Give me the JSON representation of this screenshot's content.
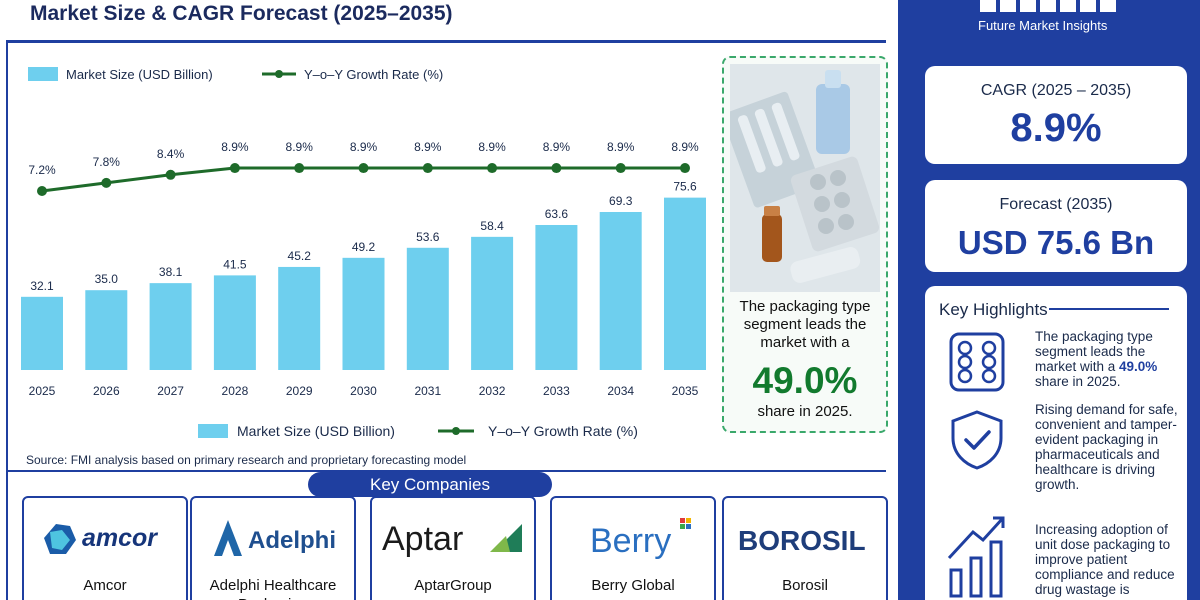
{
  "header": {
    "title": "Market Size & CAGR Forecast (2025–2035)"
  },
  "brand": {
    "name": "Future Market Insights",
    "logo_icon": "fmi-logo-icon"
  },
  "colors": {
    "primary": "#1f3fa0",
    "bar": "#6ecfee",
    "line": "#1e6b2a",
    "accent_green": "#127a2e"
  },
  "chart_data": {
    "type": "bar",
    "categories": [
      "2025",
      "2026",
      "2027",
      "2028",
      "2029",
      "2030",
      "2031",
      "2032",
      "2033",
      "2034",
      "2035"
    ],
    "series": [
      {
        "name": "Market Size (USD Billion)",
        "type": "bar",
        "values": [
          32.1,
          35.0,
          38.1,
          41.5,
          45.2,
          49.2,
          53.6,
          58.4,
          63.6,
          69.3,
          75.6
        ],
        "labels": [
          "32.1",
          "35.0",
          "38.1",
          "41.5",
          "45.2",
          "49.2",
          "53.6",
          "58.4",
          "63.6",
          "69.3",
          "75.6"
        ]
      },
      {
        "name": "Y-o-Y Growth Rate (%)",
        "type": "line",
        "values": [
          7.2,
          7.8,
          8.4,
          8.9,
          8.9,
          8.9,
          8.9,
          8.9,
          8.9,
          8.9,
          8.9
        ],
        "labels": [
          "7.2%",
          "7.8%",
          "8.4%",
          "8.9%",
          "8.9%",
          "8.9%",
          "8.9%",
          "8.9%",
          "8.9%",
          "8.9%",
          "8.9%"
        ]
      }
    ],
    "legend_top": {
      "bar_label": "Market Size (USD Billion)",
      "line_label": "Y–o–Y Growth Rate (%)"
    },
    "legend_bottom": {
      "bar_label": "Market Size (USD Billion)",
      "line_label": "Y–o–Y Growth Rate (%)"
    },
    "grid": false,
    "legend_position": "top-left and bottom-center"
  },
  "source": "Source: FMI analysis based on primary research and proprietary forecasting model",
  "highlight": {
    "text": "The packaging type segment leads the market with a",
    "value": "49.0%",
    "text_after": "share in 2025."
  },
  "key_companies": {
    "title": "Key Companies",
    "companies": [
      {
        "name": "Amcor",
        "logo_text": "amcor",
        "logo_icon": "amcor-logo-icon"
      },
      {
        "name": "Adelphi Healthcare Packaging",
        "logo_text": "Adelphi",
        "logo_icon": "adelphi-logo-icon"
      },
      {
        "name": "AptarGroup",
        "logo_text": "Aptar",
        "logo_icon": "aptar-logo-icon"
      },
      {
        "name": "Berry Global",
        "logo_text": "Berry",
        "logo_icon": "berry-logo-icon"
      },
      {
        "name": "Borosil",
        "logo_text": "BOROSIL",
        "logo_icon": "borosil-logo-icon"
      }
    ]
  },
  "cagr": {
    "label": "CAGR (2025 – 2035)",
    "value": "8.9%"
  },
  "forecast": {
    "label": "Forecast (2035)",
    "value": "USD 75.6 Bn"
  },
  "key_highlights": {
    "title": "Key Highlights",
    "items": [
      {
        "icon": "blister-pack-icon",
        "text_before": "The packaging type segment leads the market with a ",
        "value": "49.0%",
        "text_after": " share in 2025."
      },
      {
        "icon": "shield-check-icon",
        "text": "Rising demand for safe, convenient and tamper-evident packaging in pharmaceuticals and healthcare is driving growth."
      },
      {
        "icon": "growth-chart-icon",
        "text": "Increasing adoption of unit dose packaging to improve patient compliance and reduce drug wastage is"
      }
    ]
  }
}
